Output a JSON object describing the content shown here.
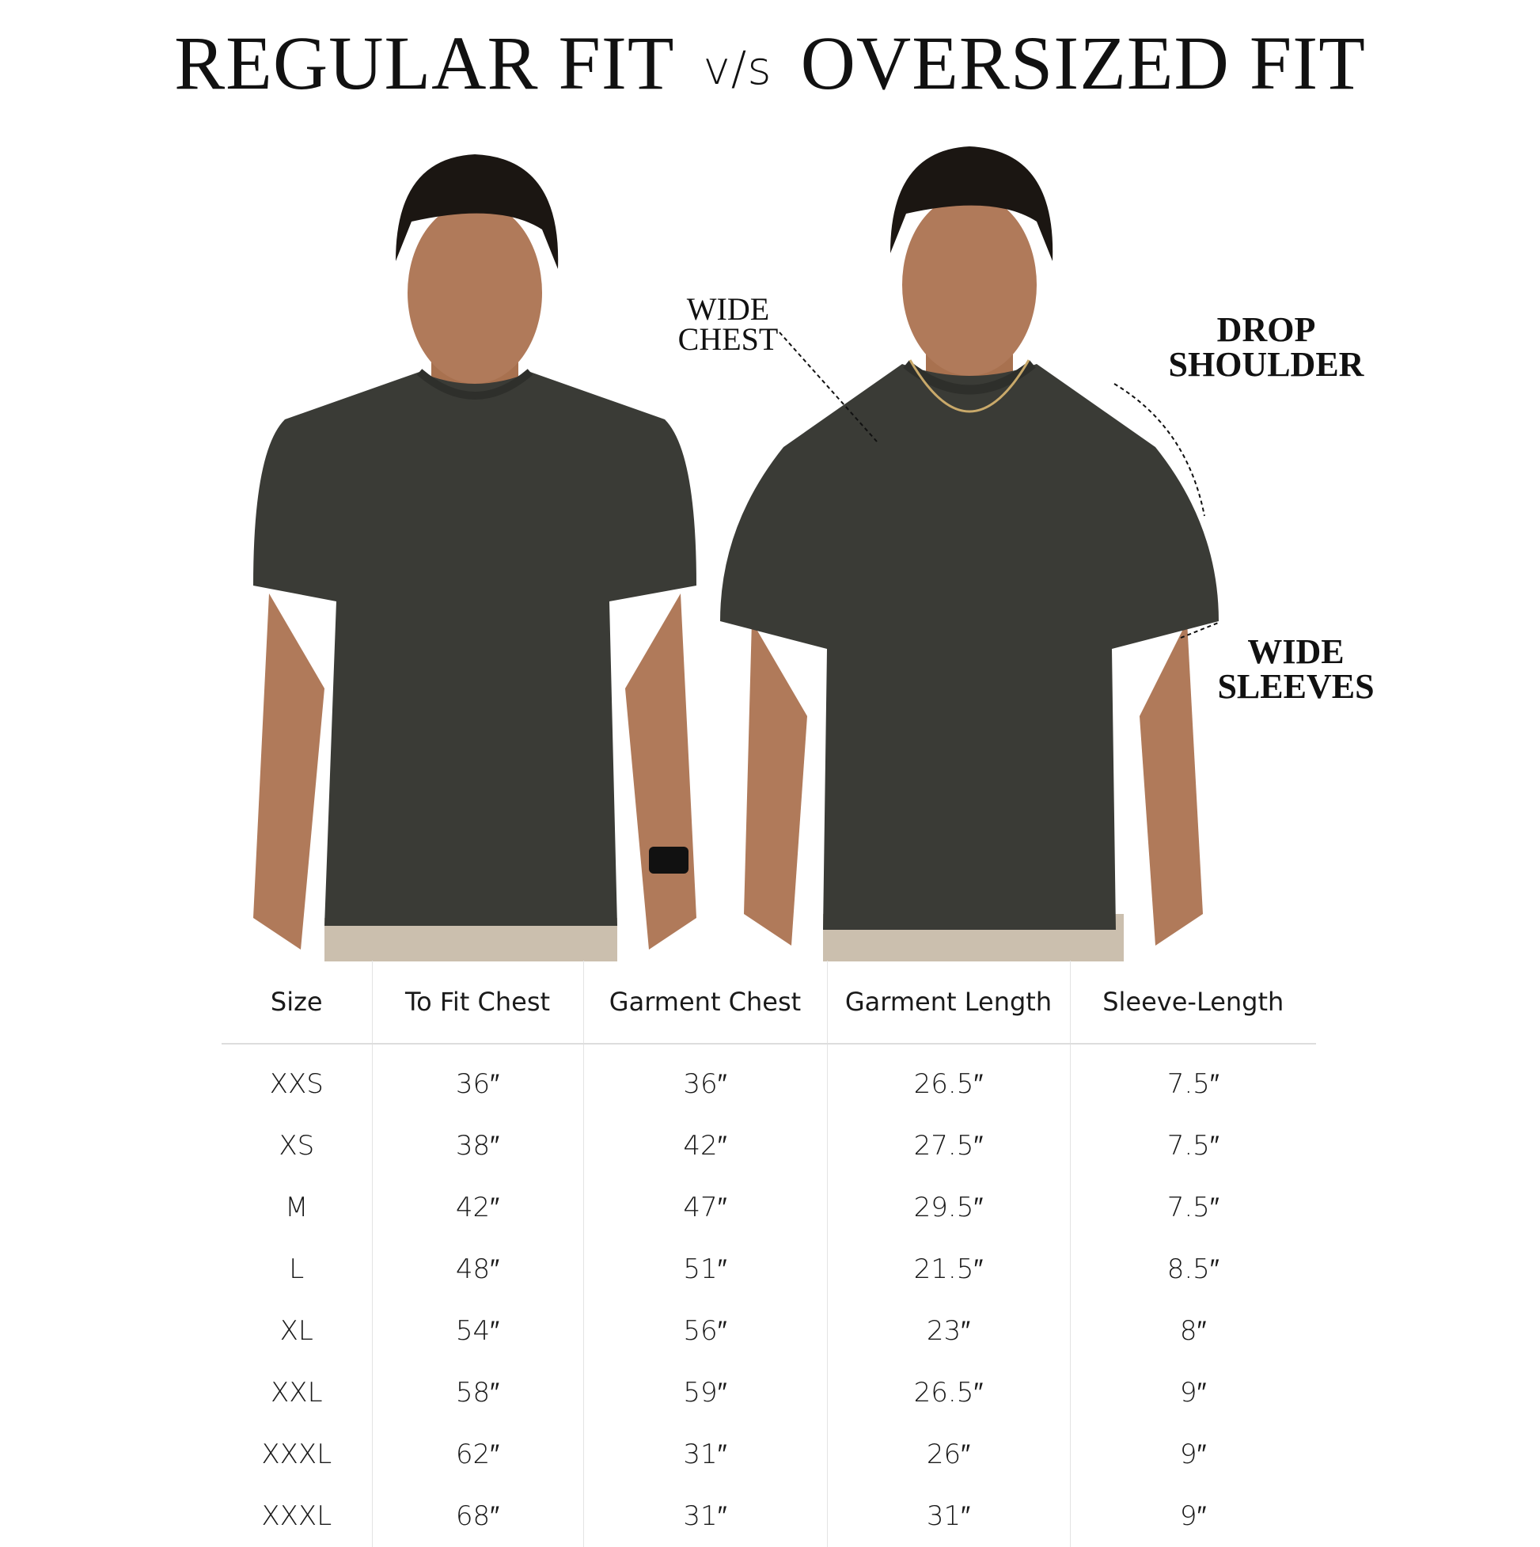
{
  "title": {
    "left": "REGULAR FIT",
    "vs": "v/s",
    "right": "OVERSIZED FIT"
  },
  "annotations": {
    "wide_chest": [
      "WIDE",
      "CHEST"
    ],
    "drop_shoulder": [
      "DROP",
      "SHOULDER"
    ],
    "wide_sleeves": [
      "WIDE",
      "SLEEVES"
    ]
  },
  "colors": {
    "shirt": "#3a3b36",
    "skin": "#b07a5a",
    "hair": "#1b1612",
    "pants": "#cbbfae"
  },
  "table": {
    "headers": [
      "Size",
      "To Fit Chest",
      "Garment Chest",
      "Garment Length",
      "Sleeve-Length"
    ],
    "rows": [
      [
        "XXS",
        "36″",
        "36″",
        "26.5″",
        "7.5″"
      ],
      [
        "XS",
        "38″",
        "42″",
        "27.5″",
        "7.5″"
      ],
      [
        "M",
        "42″",
        "47″",
        "29.5″",
        "7.5″"
      ],
      [
        "L",
        "48″",
        "51″",
        "21.5″",
        "8.5″"
      ],
      [
        "XL",
        "54″",
        "56″",
        "23″",
        "8″"
      ],
      [
        "XXL",
        "58″",
        "59″",
        "26.5″",
        "9″"
      ],
      [
        "XXXL",
        "62″",
        "31″",
        "26″",
        "9″"
      ],
      [
        "XXXL",
        "68″",
        "31″",
        "31″",
        "9″"
      ]
    ]
  }
}
